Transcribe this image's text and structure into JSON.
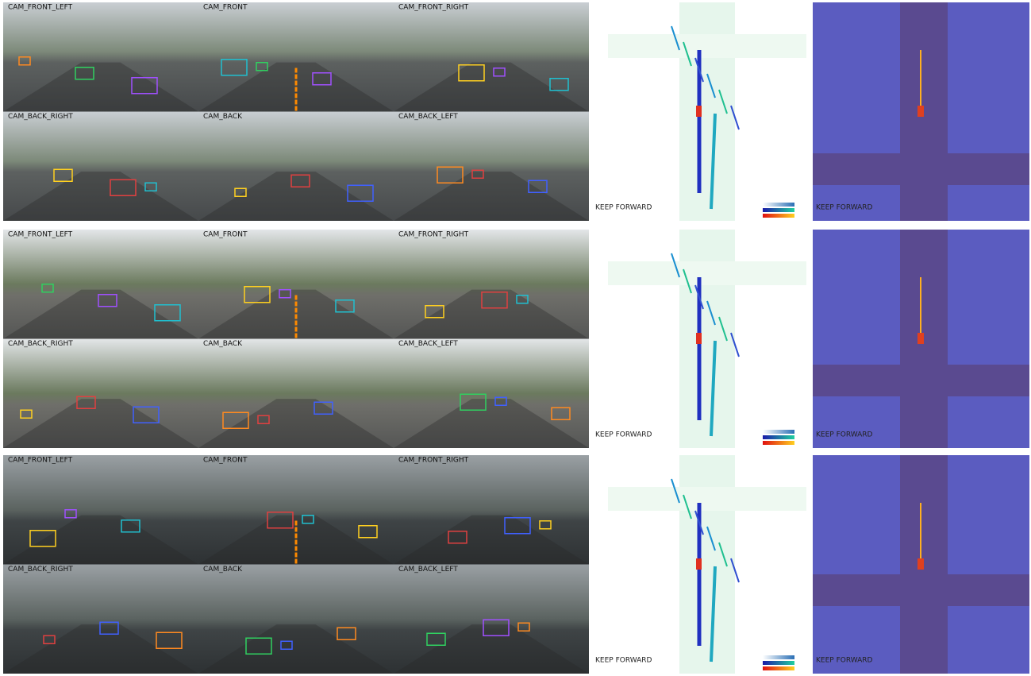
{
  "rows": [
    {
      "cameras": [
        "CAM_FRONT_LEFT",
        "CAM_FRONT",
        "CAM_FRONT_RIGHT",
        "CAM_BACK_RIGHT",
        "CAM_BACK",
        "CAM_BACK_LEFT"
      ],
      "bev_command": "KEEP FORWARD",
      "map_command": "KEEP FORWARD"
    },
    {
      "cameras": [
        "CAM_FRONT_LEFT",
        "CAM_FRONT",
        "CAM_FRONT_RIGHT",
        "CAM_BACK_RIGHT",
        "CAM_BACK",
        "CAM_BACK_LEFT"
      ],
      "bev_command": "KEEP FORWARD",
      "map_command": "KEEP FORWARD"
    },
    {
      "cameras": [
        "CAM_FRONT_LEFT",
        "CAM_FRONT",
        "CAM_FRONT_RIGHT",
        "CAM_BACK_RIGHT",
        "CAM_BACK",
        "CAM_BACK_LEFT"
      ],
      "bev_command": "KEEP FORWARD",
      "map_command": "KEEP FORWARD"
    }
  ]
}
